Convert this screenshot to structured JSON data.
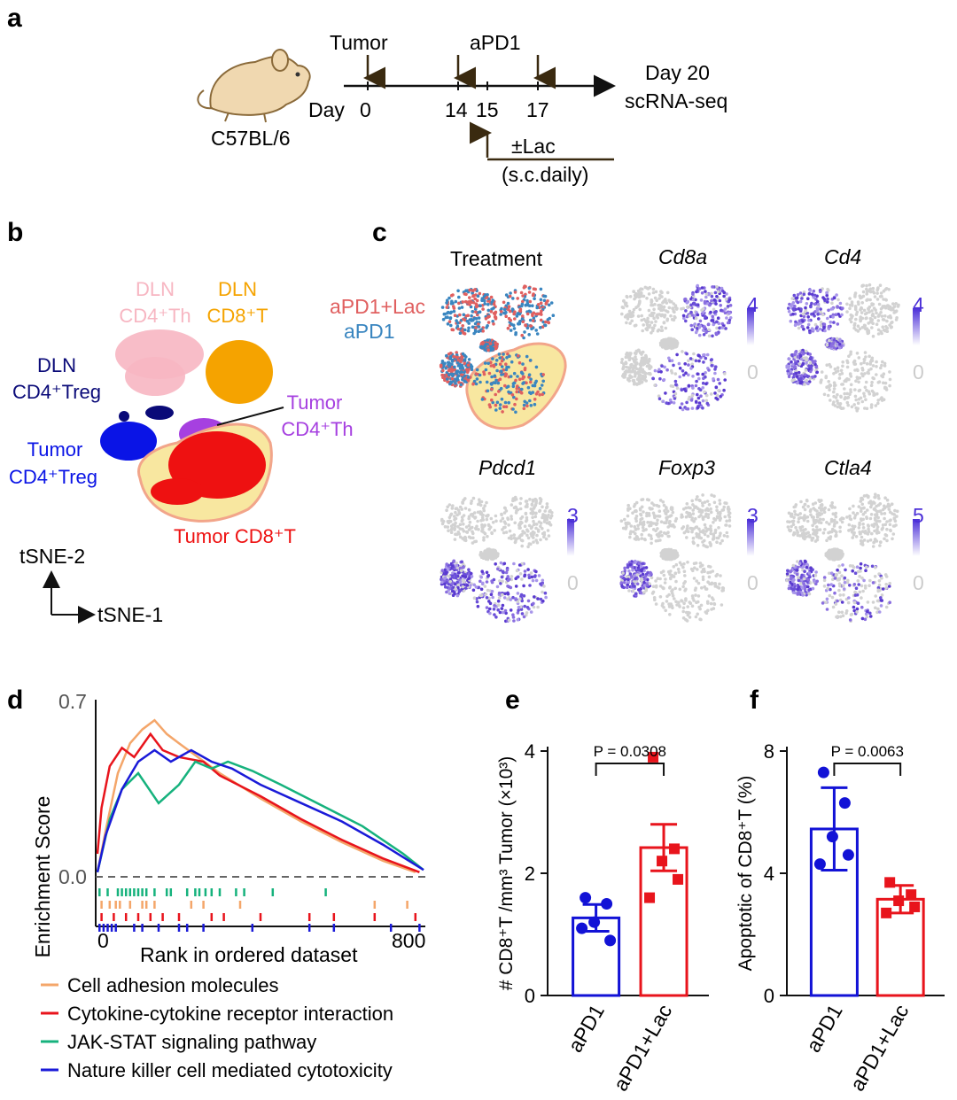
{
  "panels": {
    "a": {
      "letter": "a",
      "mouse_strain": "C57BL/6",
      "tumor_label": "Tumor",
      "apd1_label": "aPD1",
      "day_label": "Day",
      "days": [
        "0",
        "14",
        "15",
        "17"
      ],
      "end_line1": "Day 20",
      "end_line2": "scRNA-seq",
      "lac_line1": "±Lac",
      "lac_line2": "(s.c.daily)"
    },
    "b": {
      "letter": "b",
      "clusters": {
        "dln_th_1": "DLN",
        "dln_th_2": "CD4⁺Th",
        "dln_cd8_1": "DLN",
        "dln_cd8_2": "CD8⁺T",
        "dln_treg_1": "DLN",
        "dln_treg_2": "CD4⁺Treg",
        "tum_treg_1": "Tumor",
        "tum_treg_2": "CD4⁺Treg",
        "tum_th_1": "Tumor",
        "tum_th_2": "CD4⁺Th",
        "tum_cd8": "Tumor CD8⁺T"
      },
      "axis_y": "tSNE-2",
      "axis_x": "tSNE-1",
      "colors": {
        "dln_th": "#f7b6c2",
        "dln_cd8": "#f5a300",
        "dln_treg": "#0a0a78",
        "tum_treg": "#0a14e6",
        "tum_th": "#a640e0",
        "tum_cd8": "#ee1111",
        "highlight": "#f8e7a0"
      }
    },
    "c": {
      "letter": "c",
      "treatment_title": "Treatment",
      "legend_lac": "aPD1+Lac",
      "legend_apd1": "aPD1",
      "genes": [
        {
          "name": "Cd8a",
          "max": "4",
          "min": "0"
        },
        {
          "name": "Cd4",
          "max": "4",
          "min": "0"
        },
        {
          "name": "Pdcd1",
          "max": "3",
          "min": "0"
        },
        {
          "name": "Foxp3",
          "max": "3",
          "min": "0"
        },
        {
          "name": "Ctla4",
          "max": "5",
          "min": "0"
        }
      ]
    },
    "d": {
      "letter": "d",
      "ylabel": "Enrichment Score",
      "xlabel": "Rank in ordered dataset",
      "y_ticks": [
        "0.7",
        "0.0"
      ],
      "x_ticks": [
        "0",
        "800"
      ],
      "legend": [
        {
          "name": "Cell adhesion molecules",
          "color": "#f4a66a"
        },
        {
          "name": "Cytokine-cytokine receptor interaction",
          "color": "#e8141c"
        },
        {
          "name": "JAK-STAT signaling pathway",
          "color": "#16b27d"
        },
        {
          "name": "Nature killer cell mediated cytotoxicity",
          "color": "#1a1ad8"
        }
      ]
    },
    "e": {
      "letter": "e",
      "p_text": "P = 0.0308"
    },
    "f": {
      "letter": "f",
      "p_text": "P = 0.0063"
    }
  },
  "chart_data": [
    {
      "type": "line",
      "panel": "d",
      "ylabel": "Enrichment Score",
      "xlabel": "Rank in ordered dataset",
      "xlim": [
        0,
        800
      ],
      "ylim": [
        0,
        0.7
      ],
      "series": [
        {
          "name": "Cell adhesion molecules",
          "color": "#f4a66a",
          "x": [
            0,
            20,
            50,
            80,
            110,
            140,
            170,
            200,
            300,
            400,
            500,
            600,
            700,
            780
          ],
          "y": [
            0.02,
            0.2,
            0.45,
            0.58,
            0.64,
            0.68,
            0.62,
            0.58,
            0.45,
            0.34,
            0.24,
            0.15,
            0.07,
            0.02
          ]
        },
        {
          "name": "Cytokine-cytokine receptor interaction",
          "color": "#e8141c",
          "x": [
            0,
            10,
            30,
            60,
            90,
            130,
            160,
            200,
            260,
            300,
            400,
            500,
            600,
            700,
            790
          ],
          "y": [
            0.1,
            0.3,
            0.48,
            0.56,
            0.52,
            0.62,
            0.55,
            0.52,
            0.5,
            0.44,
            0.35,
            0.25,
            0.16,
            0.08,
            0.02
          ]
        },
        {
          "name": "JAK-STAT signaling pathway",
          "color": "#16b27d",
          "x": [
            0,
            30,
            60,
            100,
            150,
            200,
            240,
            280,
            320,
            380,
            450,
            550,
            650,
            750,
            800
          ],
          "y": [
            0.02,
            0.25,
            0.38,
            0.45,
            0.32,
            0.4,
            0.5,
            0.47,
            0.5,
            0.46,
            0.4,
            0.31,
            0.22,
            0.1,
            0.03
          ]
        },
        {
          "name": "Nature killer cell mediated cytotoxicity",
          "color": "#1a1ad8",
          "x": [
            0,
            20,
            60,
            100,
            140,
            180,
            230,
            280,
            330,
            400,
            500,
            600,
            700,
            800
          ],
          "y": [
            0.02,
            0.18,
            0.38,
            0.5,
            0.55,
            0.5,
            0.55,
            0.5,
            0.47,
            0.4,
            0.32,
            0.24,
            0.14,
            0.03
          ]
        }
      ],
      "hits": {
        "Cell adhesion molecules": [
          10,
          30,
          45,
          55,
          80,
          110,
          120,
          140,
          230,
          260,
          350,
          680,
          760
        ],
        "Cytokine-cytokine receptor interaction": [
          10,
          40,
          70,
          100,
          130,
          160,
          200,
          280,
          310,
          400,
          520,
          580,
          680,
          780
        ],
        "JAK-STAT signaling pathway": [
          5,
          25,
          50,
          60,
          70,
          80,
          90,
          100,
          110,
          120,
          140,
          170,
          180,
          220,
          240,
          250,
          265,
          280,
          300,
          340,
          360,
          430,
          560
        ],
        "Nature killer cell mediated cytotoxicity": [
          5,
          15,
          25,
          35,
          45,
          90,
          110,
          150,
          200,
          220,
          260,
          380,
          520,
          580,
          720,
          790
        ]
      }
    },
    {
      "type": "bar",
      "panel": "e",
      "ylabel": "# CD8⁺T /mm³ Tumor (×10³)",
      "categories": [
        "aPD1",
        "aPD1+Lac"
      ],
      "values": [
        1.27,
        2.42
      ],
      "sem": [
        0.22,
        0.38
      ],
      "points": [
        [
          1.6,
          1.5,
          1.2,
          0.9,
          1.1
        ],
        [
          3.9,
          2.4,
          2.2,
          1.9,
          1.6
        ]
      ],
      "ylim": [
        0,
        4
      ],
      "y_ticks": [
        0,
        2,
        4
      ],
      "colors": [
        "#1212d6",
        "#e8141c"
      ]
    },
    {
      "type": "bar",
      "panel": "f",
      "ylabel": "Apoptotic of CD8⁺T (%)",
      "categories": [
        "aPD1",
        "aPD1+Lac"
      ],
      "values": [
        5.45,
        3.15
      ],
      "sem": [
        1.35,
        0.45
      ],
      "points": [
        [
          7.3,
          6.3,
          5.2,
          4.6,
          4.3
        ],
        [
          3.7,
          3.3,
          3.1,
          2.9,
          2.7
        ]
      ],
      "ylim": [
        0,
        8
      ],
      "y_ticks": [
        0,
        4,
        8
      ],
      "colors": [
        "#1212d6",
        "#e8141c"
      ]
    }
  ]
}
